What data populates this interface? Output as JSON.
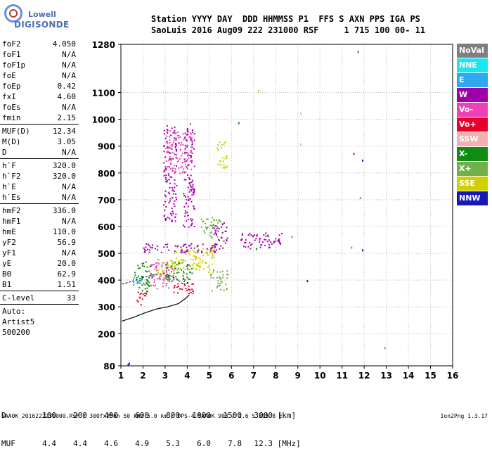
{
  "logo": {
    "line1": "Lowell",
    "line2": "DIGISONDE"
  },
  "header": {
    "line1": "Station YYYY DAY  DDD HHMMSS P1  FFS S AXN PPS IGA PS",
    "line2": "SaoLuis 2016 Aug09 222 231000 RSF     1 715 100 00- 11"
  },
  "parameters": [
    [
      {
        "name": "foF2",
        "value": "4.050"
      },
      {
        "name": "foF1",
        "value": "N/A"
      },
      {
        "name": "foF1p",
        "value": "N/A"
      },
      {
        "name": "foE",
        "value": "N/A"
      },
      {
        "name": "foEp",
        "value": "0.42"
      },
      {
        "name": "fxI",
        "value": "4.60"
      },
      {
        "name": "foEs",
        "value": "N/A"
      },
      {
        "name": "fmin",
        "value": "2.15"
      }
    ],
    [
      {
        "name": "MUF(D)",
        "value": "12.34"
      },
      {
        "name": "M(D)",
        "value": "3.05"
      },
      {
        "name": "D",
        "value": "N/A"
      }
    ],
    [
      {
        "name": "h`F",
        "value": "320.0"
      },
      {
        "name": "h`F2",
        "value": "320.0"
      },
      {
        "name": "h`E",
        "value": "N/A"
      },
      {
        "name": "h`Es",
        "value": "N/A"
      }
    ],
    [
      {
        "name": "hmF2",
        "value": "336.0"
      },
      {
        "name": "hmF1",
        "value": "N/A"
      },
      {
        "name": "hmE",
        "value": "110.0"
      },
      {
        "name": "yF2",
        "value": "56.9"
      },
      {
        "name": "yF1",
        "value": "N/A"
      },
      {
        "name": "yE",
        "value": "20.0"
      },
      {
        "name": "B0",
        "value": "62.9"
      },
      {
        "name": "B1",
        "value": "1.51"
      }
    ],
    [
      {
        "name": "C-level",
        "value": "33"
      }
    ]
  ],
  "autoscale": {
    "line1": "Auto:",
    "line2": "Artist5",
    "line3": "500200"
  },
  "legend": [
    {
      "label": "NoVal",
      "color": "#7f7f7f"
    },
    {
      "label": "NNE",
      "color": "#19e6f0"
    },
    {
      "label": "E",
      "color": "#30a8f0"
    },
    {
      "label": "W",
      "color": "#a000a8"
    },
    {
      "label": "Vo-",
      "color": "#f040b8"
    },
    {
      "label": "Vo+",
      "color": "#e8002a"
    },
    {
      "label": "SSW",
      "color": "#f4b0b0"
    },
    {
      "label": "X-",
      "color": "#108c10"
    },
    {
      "label": "X+",
      "color": "#70b048"
    },
    {
      "label": "SSE",
      "color": "#d0d000"
    },
    {
      "label": "NNW",
      "color": "#1818b8"
    }
  ],
  "distance_table": {
    "d_label": "D",
    "d_values": [
      "100",
      "200",
      "400",
      "600",
      "800",
      "1000",
      "1500",
      "3000"
    ],
    "d_unit": "[km]",
    "muf_label": "MUF",
    "muf_values": [
      "4.4",
      "4.4",
      "4.6",
      "4.9",
      "5.3",
      "6.0",
      "7.8",
      "12.3"
    ],
    "muf_unit": "[MHz]"
  },
  "footer": {
    "left": "SAA0K_2016222231000.RSF / 300fx256h 50 kHz 5.0 km / DPS-4 SAA0K 903 / 2.6 S 315.8 E",
    "right": "Ion2Png 1.3.17"
  },
  "chart_data": {
    "type": "scatter",
    "title": "",
    "xlabel": "",
    "ylabel": "",
    "xlim": [
      1,
      16
    ],
    "ylim": [
      80,
      1280
    ],
    "x_ticks": [
      "1",
      "2",
      "3",
      "4",
      "5",
      "6",
      "7",
      "8",
      "9",
      "10",
      "11",
      "12",
      "13",
      "14",
      "15",
      "16"
    ],
    "y_ticks": [
      "80",
      "200",
      "300",
      "400",
      "500",
      "600",
      "700",
      "800",
      "900",
      "1000",
      "1100",
      "1280"
    ],
    "y_tick_values": [
      80,
      200,
      300,
      400,
      500,
      600,
      700,
      800,
      900,
      1000,
      1100,
      1280
    ],
    "grid": true,
    "trace_profile": {
      "name": "",
      "points": [
        [
          1.05,
          247
        ],
        [
          1.6,
          262
        ],
        [
          2.1,
          278
        ],
        [
          2.6,
          292
        ],
        [
          3.1,
          300
        ],
        [
          3.6,
          312
        ],
        [
          3.9,
          330
        ],
        [
          4.1,
          345
        ]
      ]
    },
    "trace_virtual": {
      "name": "",
      "points": [
        [
          1.05,
          385
        ],
        [
          1.5,
          395
        ],
        [
          2.0,
          410
        ],
        [
          2.5,
          420
        ],
        [
          3.0,
          425
        ],
        [
          3.5,
          405
        ],
        [
          3.9,
          380
        ],
        [
          4.05,
          395
        ]
      ]
    },
    "echo_regions": [
      {
        "x": [
          1.6,
          2.4
        ],
        "y": [
          360,
          470
        ],
        "color": "#108c10"
      },
      {
        "x": [
          1.7,
          2.3
        ],
        "y": [
          310,
          360
        ],
        "color": "#e8002a"
      },
      {
        "x": [
          2.2,
          3.4
        ],
        "y": [
          370,
          470
        ],
        "color": "#f040b8"
      },
      {
        "x": [
          2.6,
          3.6
        ],
        "y": [
          420,
          480
        ],
        "color": "#d0d000"
      },
      {
        "x": [
          3.0,
          4.2
        ],
        "y": [
          400,
          470
        ],
        "color": "#108c10"
      },
      {
        "x": [
          3.3,
          4.6
        ],
        "y": [
          440,
          520
        ],
        "color": "#d0d000"
      },
      {
        "x": [
          4.2,
          5.2
        ],
        "y": [
          430,
          520
        ],
        "color": "#d0d000"
      },
      {
        "x": [
          3.3,
          4.3
        ],
        "y": [
          350,
          400
        ],
        "color": "#e8002a"
      },
      {
        "x": [
          2.0,
          5.6
        ],
        "y": [
          505,
          540
        ],
        "color": "#a000a8"
      },
      {
        "x": [
          5.1,
          5.8
        ],
        "y": [
          520,
          620
        ],
        "color": "#a000a8"
      },
      {
        "x": [
          5.0,
          5.8
        ],
        "y": [
          360,
          440
        ],
        "color": "#70b048"
      },
      {
        "x": [
          6.4,
          8.3
        ],
        "y": [
          520,
          580
        ],
        "color": "#a000a8"
      },
      {
        "x": [
          2.9,
          3.5
        ],
        "y": [
          620,
          980
        ],
        "color": "#a000a8"
      },
      {
        "x": [
          3.8,
          4.3
        ],
        "y": [
          600,
          1000
        ],
        "color": "#a000a8"
      },
      {
        "x": [
          5.3,
          5.8
        ],
        "y": [
          820,
          920
        ],
        "color": "#d0d000"
      },
      {
        "x": [
          3.0,
          4.2
        ],
        "y": [
          800,
          960
        ],
        "color": "#f040b8"
      },
      {
        "x": [
          4.6,
          5.5
        ],
        "y": [
          560,
          640
        ],
        "color": "#70b048"
      },
      {
        "x": [
          1.5,
          2.0
        ],
        "y": [
          380,
          420
        ],
        "color": "#30a8f0"
      }
    ],
    "isolated_points": [
      {
        "x": 1.3,
        "y": 88,
        "color": "#1818b8"
      },
      {
        "x": 1.35,
        "y": 92,
        "color": "#1818b8"
      },
      {
        "x": 9.1,
        "y": 1025,
        "color": "#f4b0b0"
      },
      {
        "x": 9.1,
        "y": 910,
        "color": "#f4b0b0"
      },
      {
        "x": 7.2,
        "y": 1110,
        "color": "#d0d000"
      },
      {
        "x": 11.7,
        "y": 1255,
        "color": "#108c10"
      },
      {
        "x": 11.5,
        "y": 875,
        "color": "#e8002a"
      },
      {
        "x": 11.9,
        "y": 850,
        "color": "#1818b8"
      },
      {
        "x": 9.4,
        "y": 400,
        "color": "#1818b8"
      },
      {
        "x": 11.9,
        "y": 515,
        "color": "#1818b8"
      },
      {
        "x": 12.9,
        "y": 150,
        "color": "#70b048"
      },
      {
        "x": 7.1,
        "y": 520,
        "color": "#108c10"
      },
      {
        "x": 6.3,
        "y": 990,
        "color": "#108c10"
      },
      {
        "x": 11.8,
        "y": 710,
        "color": "#70b048"
      },
      {
        "x": 11.4,
        "y": 525,
        "color": "#70b048"
      },
      {
        "x": 4.0,
        "y": 460,
        "color": "#1818b8"
      },
      {
        "x": 8.7,
        "y": 565,
        "color": "#30a8f0"
      }
    ]
  }
}
